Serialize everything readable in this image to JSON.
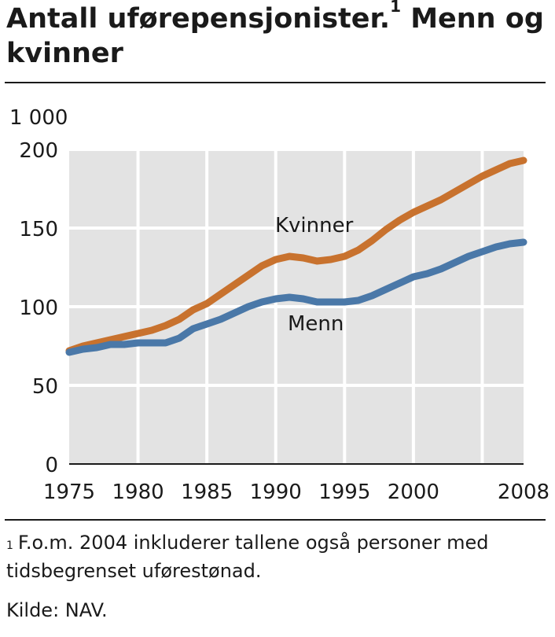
{
  "title": {
    "text": "Antall uførepensjonister.",
    "footnote_mark": "1",
    "text_rest": " Menn og kvinner"
  },
  "footnote": {
    "mark": "1",
    "text": "F.o.m. 2004 inkluderer tallene også personer med tidsbegrenset uførestønad."
  },
  "source": "Kilde: NAV.",
  "colors": {
    "kvinner": "#c8722e",
    "menn": "#4a78a8",
    "plot_bg": "#e3e3e3",
    "grid": "#ffffff",
    "text": "#1a1a1a"
  },
  "chart_data": {
    "type": "line",
    "unit_label": "1 000",
    "ylim": [
      0,
      200
    ],
    "yticks": [
      0,
      50,
      100,
      150,
      200
    ],
    "xlim": [
      1975,
      2008
    ],
    "xticks": [
      1975,
      1980,
      1985,
      1990,
      1995,
      2000,
      2008
    ],
    "grid": true,
    "x": [
      1975,
      1976,
      1977,
      1978,
      1979,
      1980,
      1981,
      1982,
      1983,
      1984,
      1985,
      1986,
      1987,
      1988,
      1989,
      1990,
      1991,
      1992,
      1993,
      1994,
      1995,
      1996,
      1997,
      1998,
      1999,
      2000,
      2001,
      2002,
      2003,
      2004,
      2005,
      2006,
      2007,
      2008
    ],
    "series": [
      {
        "name": "Kvinner",
        "color_key": "kvinner",
        "values": [
          72,
          75,
          77,
          79,
          81,
          83,
          85,
          88,
          92,
          98,
          102,
          108,
          114,
          120,
          126,
          130,
          132,
          131,
          129,
          130,
          132,
          136,
          142,
          149,
          155,
          160,
          164,
          168,
          173,
          178,
          183,
          187,
          191,
          193
        ]
      },
      {
        "name": "Menn",
        "color_key": "menn",
        "values": [
          71,
          73,
          74,
          76,
          76,
          77,
          77,
          77,
          80,
          86,
          89,
          92,
          96,
          100,
          103,
          105,
          106,
          105,
          103,
          103,
          103,
          104,
          107,
          111,
          115,
          119,
          121,
          124,
          128,
          132,
          135,
          138,
          140,
          141
        ]
      }
    ]
  }
}
